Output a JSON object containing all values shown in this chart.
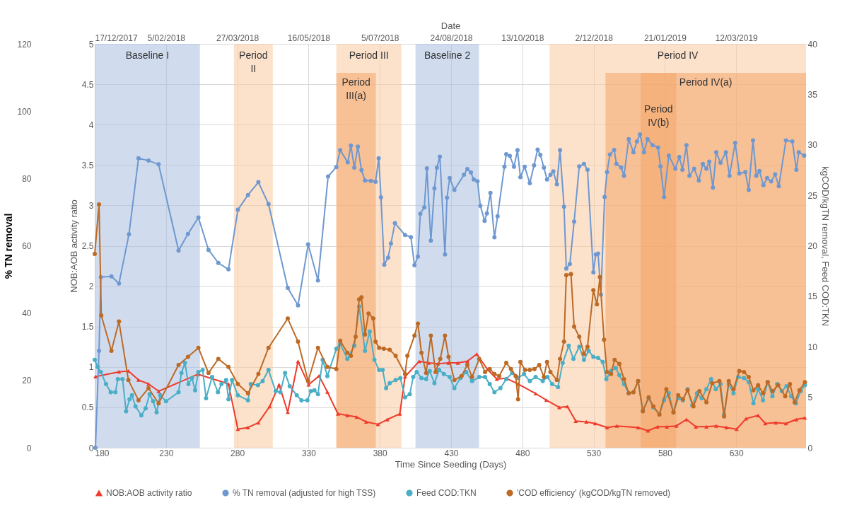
{
  "chart_data": {
    "type": "line",
    "xlabel": "Time Since Seeding (Days)",
    "x2label": "Date",
    "ylabel": "% TN removal",
    "y2label": "kgCOD/kgTN removal, Feed COD:TKN",
    "y3label": "NOB:AOB activity ratio",
    "xlim": [
      180,
      679
    ],
    "xticks": [
      180,
      230,
      280,
      330,
      380,
      430,
      480,
      530,
      580,
      630
    ],
    "x2lim": [
      "2017-12-17",
      "2019-04-30"
    ],
    "x2ticks": [
      {
        "value": "2017-12-17",
        "label": "17/12/2017"
      },
      {
        "value": "2018-02-05",
        "label": "5/02/2018"
      },
      {
        "value": "2018-03-27",
        "label": "27/03/2018"
      },
      {
        "value": "2018-05-16",
        "label": "16/05/2018"
      },
      {
        "value": "2018-07-05",
        "label": "5/07/2018"
      },
      {
        "value": "2018-08-24",
        "label": "24/08/2018"
      },
      {
        "value": "2018-10-13",
        "label": "13/10/2018"
      },
      {
        "value": "2018-12-02",
        "label": "2/12/2018"
      },
      {
        "value": "2019-01-21",
        "label": "21/01/2019"
      },
      {
        "value": "2019-03-12",
        "label": "12/03/2019"
      }
    ],
    "ylim": [
      0,
      120
    ],
    "yticks": [
      0,
      20,
      40,
      60,
      80,
      100,
      120
    ],
    "y2lim": [
      0,
      40
    ],
    "y2ticks": [
      0,
      5,
      10,
      15,
      20,
      25,
      30,
      35,
      40
    ],
    "y3lim": [
      0,
      5
    ],
    "y3ticks": [
      0,
      0.5,
      1,
      1.5,
      2,
      2.5,
      3,
      3.5,
      4,
      4.5,
      5
    ],
    "grid": true,
    "legend": "bottom",
    "marker": "circle",
    "line_style": "solid",
    "bands": [
      {
        "axis": "x",
        "from": 180,
        "to": 253.8,
        "label": "Baseline I",
        "color": "#a9c0e0"
      },
      {
        "axis": "x",
        "from": 277.6,
        "to": 304.9,
        "label": "Period II",
        "color": "#f9c9a0"
      },
      {
        "axis": "x",
        "from": 349.5,
        "to": 395.1,
        "label": "Period III",
        "color": "#f9c9a0"
      },
      {
        "axis": "x",
        "from": 349.5,
        "to": 377.2,
        "label": "Period III(a)",
        "color": "#f4a56a"
      },
      {
        "axis": "x",
        "from": 405,
        "to": 449.6,
        "label": "Baseline 2",
        "color": "#a9c0e0"
      },
      {
        "axis": "x",
        "from": 499.1,
        "to": 679,
        "label": "Period IV",
        "color": "#f9c9a0"
      },
      {
        "axis": "x",
        "from": 538.3,
        "to": 679,
        "label": "Period IV(a)",
        "color": "#f4a56a"
      },
      {
        "axis": "x",
        "from": 563,
        "to": 588,
        "label": "Period IV(b)",
        "color": "#f4a56a"
      }
    ],
    "series": [
      {
        "name": "NOB:AOB activity ratio",
        "color": "#ee3b2b",
        "axis": "y3",
        "marker": "triangle",
        "x": [
          180.5,
          197,
          203.6,
          210.7,
          217.7,
          224.8,
          252.3,
          273.8,
          280.4,
          287.5,
          294.8,
          302.7,
          309.3,
          315.4,
          322.6,
          330,
          337.4,
          343.2,
          350.6,
          357.2,
          363.8,
          370.4,
          378.7,
          385.3,
          394,
          397.7,
          407.6,
          414.2,
          420.8,
          428.2,
          434.8,
          441.4,
          448,
          455.5,
          462.1,
          468.7,
          477,
          489.3,
          496.8,
          505.9,
          511.6,
          517.4,
          524.9,
          531.1,
          539.4,
          546.3,
          561.2,
          568.1,
          574.8,
          581.4,
          588,
          595.1,
          601.7,
          609.1,
          616,
          623.2,
          630.3,
          636.9,
          645.4,
          650.4,
          657.8,
          664.9,
          672.2,
          678.2
        ],
        "values": [
          0.88,
          0.94,
          0.95,
          0.84,
          0.79,
          0.7,
          0.91,
          0.79,
          0.23,
          0.25,
          0.31,
          0.51,
          0.78,
          0.44,
          1.07,
          0.78,
          0.89,
          0.69,
          0.42,
          0.4,
          0.38,
          0.32,
          0.29,
          0.35,
          0.42,
          0.88,
          1.07,
          1.05,
          1.04,
          1.05,
          1.05,
          1.07,
          1.16,
          0.97,
          0.85,
          0.86,
          0.79,
          0.67,
          0.59,
          0.5,
          0.51,
          0.33,
          0.32,
          0.3,
          0.25,
          0.27,
          0.25,
          0.21,
          0.26,
          0.26,
          0.27,
          0.35,
          0.26,
          0.26,
          0.27,
          0.25,
          0.23,
          0.36,
          0.4,
          0.3,
          0.31,
          0.3,
          0.35,
          0.37
        ]
      },
      {
        "name": "% TN removal (adjusted for high TSS)",
        "color": "#6f98d0",
        "axis": "y",
        "x": [
          180.5,
          183,
          184.3,
          191.7,
          197,
          204,
          210.7,
          217.7,
          224.8,
          238.8,
          245.4,
          252.7,
          259.8,
          266.7,
          273.8,
          280.4,
          287.5,
          294.8,
          301.9,
          315.4,
          322.6,
          329.7,
          336.6,
          343.7,
          349.5,
          352.2,
          357.5,
          359.7,
          362.1,
          364.6,
          367.1,
          369.6,
          373.7,
          377,
          379.2,
          380.8,
          383.1,
          385.8,
          387.8,
          390.6,
          397.7,
          401.8,
          404.3,
          406.7,
          408.4,
          411.2,
          413,
          415.8,
          418.3,
          420,
          422.1,
          425.7,
          427.1,
          429,
          432.3,
          439,
          441.4,
          443.9,
          445.9,
          448.5,
          450.5,
          453.5,
          455.1,
          457.6,
          460.4,
          462.6,
          467.4,
          468.7,
          471.2,
          474.1,
          476.6,
          478.6,
          481.6,
          485.2,
          488.2,
          490.7,
          492.6,
          495.1,
          497.3,
          499.7,
          501.7,
          504.2,
          506.4,
          509.2,
          510.8,
          513.3,
          516.3,
          519.9,
          523.2,
          525.7,
          529.8,
          531.5,
          533.1,
          535.1,
          537.7,
          539.4,
          541.4,
          544.4,
          546,
          549.3,
          551.3,
          554.6,
          557.9,
          560.4,
          562.5,
          565.3,
          567.8,
          571.4,
          575.2,
          576.9,
          579.4,
          582.7,
          587.3,
          590.1,
          592.3,
          595.1,
          597.2,
          600.5,
          603.8,
          606.6,
          609.1,
          611.1,
          613.7,
          616,
          619,
          622.8,
          625.3,
          629.3,
          632.2,
          636.4,
          638.8,
          641.8,
          644.1,
          646.3,
          649.1,
          651.7,
          654.5,
          657.3,
          659.9,
          664.9,
          669.4,
          672.2,
          673.9,
          677.7
        ],
        "values": [
          0,
          28.8,
          50.7,
          50.9,
          48.8,
          63.4,
          86,
          85.3,
          84.2,
          58.6,
          63.5,
          68.4,
          58.8,
          54.9,
          53,
          70.7,
          75.1,
          78.9,
          72.4,
          47.5,
          42.3,
          60.4,
          49.7,
          80.6,
          83.4,
          88.4,
          84.8,
          89.8,
          83.2,
          89.5,
          82.5,
          79.4,
          79.3,
          79,
          86,
          74.4,
          54.4,
          56.5,
          60.7,
          66.7,
          63.2,
          62.6,
          54.2,
          56.8,
          69.5,
          71.4,
          83,
          61.5,
          77.1,
          83.2,
          86.5,
          57.4,
          74.3,
          80.1,
          76.6,
          81.1,
          82.8,
          81.8,
          79.7,
          79.2,
          71.9,
          67.4,
          69.6,
          75.7,
          62.5,
          68.8,
          83.5,
          87.2,
          86.7,
          83.5,
          88.4,
          80.4,
          83.5,
          78.6,
          83.9,
          88.6,
          87,
          83.2,
          79.7,
          81.1,
          82.1,
          78.3,
          88.4,
          71.6,
          53.2,
          54.6,
          67.2,
          83.6,
          84.3,
          82.6,
          52.1,
          57.4,
          57.7,
          45.5,
          74.5,
          81.9,
          87.1,
          88.5,
          84.3,
          83.3,
          80.8,
          91.7,
          87.8,
          91,
          93.1,
          87.8,
          91.7,
          89.9,
          89.2,
          83.6,
          74.5,
          86.8,
          82.9,
          86.4,
          82.6,
          89.9,
          80.8,
          82.9,
          79.4,
          84.3,
          82.9,
          85,
          77.3,
          87.8,
          84.7,
          87.8,
          80.8,
          90.6,
          81.5,
          81.9,
          76.6,
          91.3,
          80.8,
          82.2,
          78,
          80.1,
          79.1,
          81.2,
          77.7,
          91.3,
          91,
          82.6,
          87.8,
          86.8
        ]
      },
      {
        "name": "Feed COD:TKN",
        "color": "#4aaec6",
        "axis": "y2",
        "x": [
          180,
          182.1,
          184.3,
          187.9,
          191.2,
          194.5,
          196.2,
          199.5,
          202,
          204.4,
          206.1,
          208.6,
          212.7,
          215.7,
          218.5,
          221,
          223.4,
          225.9,
          230,
          238.8,
          240.8,
          243.3,
          245.7,
          248.2,
          250.4,
          252.7,
          255.7,
          258.1,
          262.3,
          266.4,
          268.9,
          272.2,
          273.8,
          276.3,
          280.4,
          287.5,
          289.5,
          294.5,
          297.8,
          301.9,
          306.9,
          310.2,
          313.5,
          316.8,
          321.7,
          325,
          329.2,
          331.6,
          334.1,
          336.6,
          339.9,
          343.2,
          349.5,
          352.2,
          357.2,
          362.1,
          365.5,
          369.6,
          372.9,
          376.2,
          379.5,
          382,
          384.4,
          386.9,
          391.1,
          394.4,
          397.7,
          401,
          403.4,
          405.9,
          409.2,
          412.5,
          415,
          418.3,
          421.6,
          424.9,
          429,
          432.3,
          436.5,
          440.6,
          444.7,
          449.7,
          453.8,
          457.1,
          460.4,
          464.6,
          468.7,
          472.8,
          476.9,
          481.1,
          485.2,
          489.3,
          494.3,
          497.6,
          500.9,
          505,
          508.3,
          512.5,
          515.8,
          519.9,
          523.2,
          526.5,
          529.8,
          533.1,
          536.4,
          538.9,
          542.2,
          545.5,
          548,
          551.3,
          554.6,
          557.9,
          561.2,
          564.5,
          568.6,
          571.9,
          576.1,
          579.4,
          582.7,
          586,
          589.3,
          592.6,
          595.9,
          599.2,
          602.5,
          605.8,
          609.1,
          612.4,
          615.7,
          619,
          621.5,
          624.8,
          628.1,
          631.4,
          635.5,
          638.8,
          642.1,
          645.4,
          648.8,
          652.1,
          655.4,
          658.7,
          662,
          665.3,
          668.6,
          671.9,
          675.2,
          678.2
        ],
        "values": [
          8.7,
          8,
          7.5,
          6.3,
          5.5,
          5.5,
          6.8,
          6.8,
          3.6,
          4.8,
          5.2,
          4.1,
          3.2,
          3.9,
          5.3,
          4.6,
          3.5,
          5.2,
          4.6,
          5.5,
          7.4,
          8.4,
          6.3,
          6.9,
          5.7,
          7.5,
          7.7,
          4.9,
          7,
          5.5,
          6.3,
          6.7,
          4.8,
          6.7,
          5.2,
          4.7,
          6.3,
          6.2,
          6.6,
          7.7,
          5.6,
          5.5,
          7.4,
          6.1,
          5.2,
          4.7,
          4.7,
          5.6,
          5.7,
          5.3,
          8.7,
          7.1,
          9.8,
          10.3,
          8.8,
          10.1,
          14,
          9.6,
          11.5,
          8.7,
          7.7,
          7.7,
          5.9,
          6.4,
          6.7,
          6.9,
          5,
          5.3,
          7,
          7.5,
          6.9,
          6.8,
          7.6,
          6.4,
          7.7,
          7.3,
          7,
          5.9,
          6.9,
          7.5,
          6.6,
          7,
          7,
          6.3,
          5.5,
          5.9,
          6.8,
          7.4,
          6.9,
          7.3,
          6.6,
          7,
          6.6,
          7,
          6.3,
          6,
          8.4,
          10.1,
          8.8,
          10,
          8.7,
          9.6,
          9,
          8.9,
          8.5,
          6.8,
          7.6,
          7.9,
          7.2,
          6.3,
          5.4,
          5.5,
          6.6,
          3.7,
          4.9,
          4,
          3.3,
          4.7,
          5.4,
          3.5,
          4.9,
          4.7,
          5.8,
          4.2,
          5.4,
          4.9,
          5.8,
          6.8,
          5.8,
          6.3,
          3.3,
          6.3,
          5.4,
          7,
          6.9,
          6.5,
          4.4,
          5.8,
          4.7,
          6.5,
          5.1,
          6.3,
          5.6,
          6.1,
          5.1,
          4.4,
          5.6,
          6.2
        ]
      },
      {
        "name": "'COD efficiency' (kgCOD/kgTN removed)",
        "color": "#bd6a25",
        "axis": "y2",
        "x": [
          180,
          183,
          184.6,
          191.7,
          197,
          203.6,
          210.7,
          217.7,
          224.8,
          238.8,
          245.4,
          252.7,
          259.8,
          266.7,
          273.8,
          280.4,
          287.5,
          294.8,
          301.9,
          315.4,
          322.6,
          329.7,
          336.6,
          343.2,
          349.5,
          352.2,
          357.2,
          359.7,
          363,
          365.5,
          367.1,
          369.6,
          372.1,
          375.4,
          377,
          379.5,
          382.8,
          386.9,
          391.1,
          397.7,
          399.3,
          404.3,
          406.7,
          409.2,
          412.5,
          415.8,
          419.1,
          422.4,
          425.7,
          428.2,
          432.3,
          437.3,
          441.4,
          444.7,
          449.7,
          453.8,
          457.1,
          460.4,
          463.7,
          468.7,
          472,
          475.3,
          477,
          478.6,
          481.9,
          485.2,
          488.5,
          491.8,
          495.1,
          497.3,
          499.7,
          504.2,
          506.4,
          509.2,
          510.8,
          514.1,
          516.3,
          519.9,
          523.2,
          525.7,
          529.8,
          532.3,
          534.4,
          537.3,
          539.4,
          542.2,
          544.7,
          548,
          551.3,
          554.6,
          557.9,
          561.2,
          564.5,
          568.6,
          571.9,
          576.1,
          581,
          586,
          589.3,
          592.6,
          595.9,
          600,
          604.2,
          609.1,
          613.2,
          618.2,
          621.5,
          624.8,
          628.1,
          632.2,
          635.5,
          638.8,
          642.1,
          645.4,
          648.8,
          652.1,
          655.4,
          659.5,
          664.4,
          667.7,
          671,
          674.4,
          678.2
        ],
        "values": [
          19.2,
          24.1,
          13.1,
          9.6,
          12.5,
          6.7,
          4.7,
          5.9,
          4.4,
          8.2,
          9,
          9.9,
          7.4,
          8.8,
          8,
          6.3,
          5.4,
          7.3,
          9.9,
          12.8,
          10.5,
          6.6,
          9.9,
          8,
          7.8,
          10.6,
          9.4,
          9.1,
          11,
          14.7,
          14.9,
          11.2,
          13.3,
          12.8,
          10.5,
          9.9,
          9.8,
          9.7,
          9.1,
          7.3,
          9.1,
          11.1,
          12.3,
          9.4,
          7.4,
          11.1,
          7.5,
          8.8,
          11.1,
          9,
          6.7,
          7.1,
          8.2,
          7,
          8.8,
          7.5,
          7.8,
          7.3,
          7.1,
          8.4,
          7.8,
          7.1,
          4.8,
          8.5,
          7.7,
          7.7,
          7.8,
          8.2,
          7,
          8.5,
          7.5,
          6.7,
          8.8,
          10.5,
          17.1,
          17.2,
          12,
          11,
          9.3,
          10,
          15.6,
          14.2,
          16.9,
          10.7,
          7.5,
          7.3,
          8.7,
          8.3,
          6.8,
          5.4,
          5.5,
          6.6,
          3.6,
          5,
          4.1,
          3.3,
          5.8,
          3.5,
          5.2,
          4.8,
          5.7,
          4.1,
          5.6,
          4.5,
          6.4,
          6.6,
          3.1,
          6.6,
          5.8,
          7.6,
          7.5,
          7,
          5.7,
          6.2,
          5.4,
          6.5,
          5.6,
          6.2,
          5.1,
          6.3,
          4.5,
          5.7,
          6.5
        ]
      }
    ]
  }
}
